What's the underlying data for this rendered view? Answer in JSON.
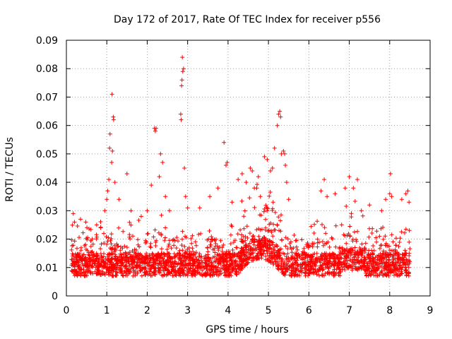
{
  "chart_data": {
    "type": "scatter",
    "title": "Day 172 of 2017, Rate Of TEC Index for receiver p556",
    "xlabel": "GPS time / hours",
    "ylabel": "ROTI / TECUs",
    "xlim": [
      0,
      9
    ],
    "ylim": [
      0,
      0.09
    ],
    "xticks": [
      "0",
      "1",
      "2",
      "3",
      "4",
      "5",
      "6",
      "7",
      "8",
      "9"
    ],
    "yticks": [
      "0",
      "0.01",
      "0.02",
      "0.03",
      "0.04",
      "0.05",
      "0.06",
      "0.07",
      "0.08",
      "0.09"
    ],
    "grid": true,
    "marker": "+",
    "color": "#ff0000",
    "series": [
      {
        "name": "ROTI",
        "generation": {
          "x_start": 0.12,
          "x_end": 8.5,
          "count": 2600,
          "baseline": 0.011,
          "spread": 0.004
        },
        "highlights": [
          [
            0.17,
            0.029
          ],
          [
            0.2,
            0.026
          ],
          [
            0.35,
            0.027
          ],
          [
            0.48,
            0.026
          ],
          [
            0.75,
            0.025
          ],
          [
            0.85,
            0.024
          ],
          [
            0.95,
            0.03
          ],
          [
            1.0,
            0.034
          ],
          [
            1.02,
            0.037
          ],
          [
            1.05,
            0.041
          ],
          [
            1.07,
            0.052
          ],
          [
            1.08,
            0.057
          ],
          [
            1.12,
            0.047
          ],
          [
            1.14,
            0.051
          ],
          [
            1.13,
            0.071
          ],
          [
            1.17,
            0.062
          ],
          [
            1.16,
            0.063
          ],
          [
            1.2,
            0.04
          ],
          [
            1.3,
            0.034
          ],
          [
            1.5,
            0.043
          ],
          [
            1.6,
            0.03
          ],
          [
            1.85,
            0.028
          ],
          [
            2.0,
            0.03
          ],
          [
            2.1,
            0.039
          ],
          [
            2.18,
            0.059
          ],
          [
            2.2,
            0.058
          ],
          [
            2.22,
            0.059
          ],
          [
            2.3,
            0.042
          ],
          [
            2.33,
            0.05
          ],
          [
            2.38,
            0.047
          ],
          [
            2.45,
            0.035
          ],
          [
            2.55,
            0.03
          ],
          [
            2.83,
            0.064
          ],
          [
            2.84,
            0.062
          ],
          [
            2.85,
            0.074
          ],
          [
            2.86,
            0.076
          ],
          [
            2.87,
            0.084
          ],
          [
            2.88,
            0.079
          ],
          [
            2.9,
            0.08
          ],
          [
            2.92,
            0.045
          ],
          [
            2.95,
            0.035
          ],
          [
            3.0,
            0.031
          ],
          [
            3.3,
            0.031
          ],
          [
            3.55,
            0.035
          ],
          [
            3.75,
            0.038
          ],
          [
            3.9,
            0.054
          ],
          [
            3.95,
            0.046
          ],
          [
            3.98,
            0.047
          ],
          [
            4.1,
            0.033
          ],
          [
            4.25,
            0.041
          ],
          [
            4.35,
            0.043
          ],
          [
            4.45,
            0.04
          ],
          [
            4.55,
            0.045
          ],
          [
            4.6,
            0.044
          ],
          [
            4.65,
            0.038
          ],
          [
            4.75,
            0.042
          ],
          [
            4.8,
            0.035
          ],
          [
            4.9,
            0.049
          ],
          [
            4.97,
            0.048
          ],
          [
            5.05,
            0.044
          ],
          [
            5.1,
            0.045
          ],
          [
            5.15,
            0.052
          ],
          [
            5.22,
            0.06
          ],
          [
            5.25,
            0.064
          ],
          [
            5.28,
            0.065
          ],
          [
            5.3,
            0.063
          ],
          [
            5.32,
            0.05
          ],
          [
            5.37,
            0.051
          ],
          [
            5.4,
            0.05
          ],
          [
            5.42,
            0.046
          ],
          [
            5.45,
            0.04
          ],
          [
            5.5,
            0.034
          ],
          [
            6.3,
            0.037
          ],
          [
            6.38,
            0.041
          ],
          [
            6.45,
            0.035
          ],
          [
            6.65,
            0.036
          ],
          [
            6.9,
            0.038
          ],
          [
            7.0,
            0.042
          ],
          [
            7.1,
            0.038
          ],
          [
            7.2,
            0.041
          ],
          [
            7.3,
            0.03
          ],
          [
            7.5,
            0.032
          ],
          [
            7.8,
            0.03
          ],
          [
            7.9,
            0.034
          ],
          [
            8.0,
            0.036
          ],
          [
            8.02,
            0.043
          ],
          [
            8.05,
            0.035
          ],
          [
            8.3,
            0.034
          ],
          [
            8.4,
            0.036
          ],
          [
            8.45,
            0.037
          ],
          [
            8.48,
            0.033
          ]
        ]
      }
    ]
  }
}
